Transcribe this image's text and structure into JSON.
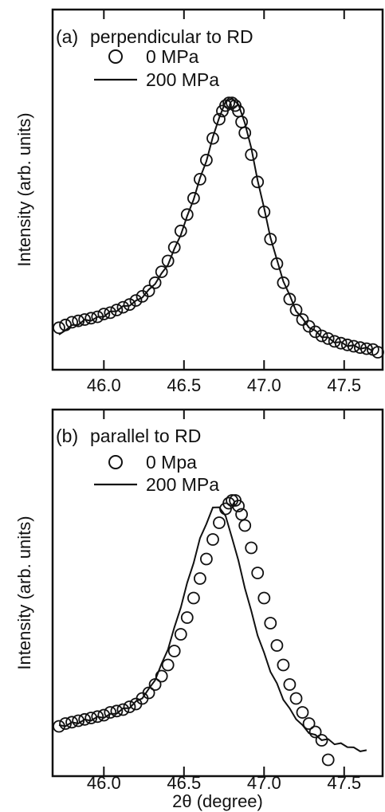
{
  "chart_data": [
    {
      "type": "scatter",
      "panel_label": "(a)",
      "title": "perpendicular to RD",
      "xlabel": "",
      "ylabel": "Intensity (arb. units)",
      "xlim": [
        45.68,
        47.74
      ],
      "ylim": [
        0,
        1
      ],
      "xticks": [
        "46.0",
        "46.5",
        "47.0",
        "47.5"
      ],
      "legend_position": "top-left",
      "series": [
        {
          "name": "0 MPa",
          "marker": "open-circle",
          "x": [
            45.72,
            45.76,
            45.8,
            45.84,
            45.88,
            45.92,
            45.96,
            46.0,
            46.04,
            46.08,
            46.12,
            46.16,
            46.2,
            46.24,
            46.28,
            46.32,
            46.36,
            46.4,
            46.44,
            46.48,
            46.52,
            46.56,
            46.6,
            46.64,
            46.68,
            46.72,
            46.74,
            46.76,
            46.78,
            46.8,
            46.82,
            46.84,
            46.86,
            46.88,
            46.92,
            46.96,
            47.0,
            47.04,
            47.08,
            47.12,
            47.16,
            47.2,
            47.24,
            47.28,
            47.32,
            47.36,
            47.4,
            47.44,
            47.48,
            47.52,
            47.56,
            47.6,
            47.64,
            47.68,
            47.71
          ],
          "y": [
            0.125,
            0.135,
            0.145,
            0.15,
            0.155,
            0.16,
            0.165,
            0.175,
            0.18,
            0.19,
            0.2,
            0.21,
            0.225,
            0.24,
            0.26,
            0.29,
            0.33,
            0.37,
            0.42,
            0.48,
            0.54,
            0.6,
            0.67,
            0.74,
            0.82,
            0.89,
            0.92,
            0.94,
            0.95,
            0.95,
            0.94,
            0.92,
            0.88,
            0.84,
            0.76,
            0.66,
            0.55,
            0.45,
            0.36,
            0.29,
            0.23,
            0.19,
            0.155,
            0.13,
            0.11,
            0.095,
            0.085,
            0.075,
            0.068,
            0.062,
            0.057,
            0.052,
            0.048,
            0.045,
            0.035
          ]
        },
        {
          "name": "200 MPa",
          "marker": "line",
          "x": [
            45.72,
            45.76,
            45.8,
            45.84,
            45.88,
            45.92,
            45.96,
            46.0,
            46.04,
            46.08,
            46.12,
            46.16,
            46.2,
            46.24,
            46.28,
            46.32,
            46.36,
            46.4,
            46.44,
            46.48,
            46.52,
            46.56,
            46.6,
            46.64,
            46.68,
            46.72,
            46.76,
            46.8,
            46.84,
            46.88,
            46.92,
            46.96,
            47.0,
            47.04,
            47.08,
            47.12,
            47.16,
            47.2,
            47.24,
            47.28,
            47.32,
            47.36,
            47.4,
            47.44,
            47.48,
            47.52,
            47.56,
            47.6,
            47.64,
            47.68
          ],
          "y": [
            0.095,
            0.12,
            0.13,
            0.14,
            0.15,
            0.155,
            0.16,
            0.17,
            0.18,
            0.19,
            0.2,
            0.21,
            0.22,
            0.24,
            0.26,
            0.29,
            0.32,
            0.36,
            0.41,
            0.47,
            0.53,
            0.6,
            0.67,
            0.74,
            0.82,
            0.9,
            0.95,
            0.97,
            0.94,
            0.88,
            0.78,
            0.67,
            0.56,
            0.46,
            0.37,
            0.3,
            0.24,
            0.19,
            0.155,
            0.13,
            0.11,
            0.095,
            0.085,
            0.075,
            0.068,
            0.062,
            0.056,
            0.052,
            0.048,
            0.044
          ]
        }
      ]
    },
    {
      "type": "scatter",
      "panel_label": "(b)",
      "title": "parallel to RD",
      "xlabel": "2θ (degree)",
      "ylabel": "Intensity (arb. units)",
      "xlim": [
        45.68,
        47.74
      ],
      "ylim": [
        0,
        1
      ],
      "xticks": [
        "46.0",
        "46.5",
        "47.0",
        "47.5"
      ],
      "legend_position": "top-left",
      "series": [
        {
          "name": "0 Mpa",
          "marker": "open-circle",
          "x": [
            45.72,
            45.76,
            45.8,
            45.84,
            45.88,
            45.92,
            45.96,
            46.0,
            46.04,
            46.08,
            46.12,
            46.16,
            46.2,
            46.24,
            46.28,
            46.32,
            46.36,
            46.4,
            46.44,
            46.48,
            46.52,
            46.56,
            46.6,
            46.64,
            46.68,
            46.72,
            46.76,
            46.78,
            46.8,
            46.82,
            46.84,
            46.86,
            46.88,
            46.92,
            46.96,
            47.0,
            47.04,
            47.08,
            47.12,
            47.16,
            47.2,
            47.24,
            47.28,
            47.32,
            47.36,
            47.4
          ],
          "y": [
            0.15,
            0.16,
            0.165,
            0.17,
            0.175,
            0.18,
            0.185,
            0.19,
            0.2,
            0.205,
            0.21,
            0.22,
            0.23,
            0.25,
            0.27,
            0.3,
            0.33,
            0.37,
            0.42,
            0.48,
            0.54,
            0.61,
            0.68,
            0.75,
            0.82,
            0.88,
            0.93,
            0.95,
            0.96,
            0.96,
            0.94,
            0.91,
            0.87,
            0.79,
            0.7,
            0.61,
            0.52,
            0.44,
            0.37,
            0.3,
            0.25,
            0.2,
            0.16,
            0.13,
            0.1,
            0.03
          ]
        },
        {
          "name": "200 MPa",
          "marker": "line",
          "x": [
            45.72,
            45.76,
            45.8,
            45.84,
            45.88,
            45.92,
            45.96,
            46.0,
            46.04,
            46.08,
            46.12,
            46.16,
            46.2,
            46.24,
            46.28,
            46.32,
            46.36,
            46.4,
            46.44,
            46.48,
            46.52,
            46.56,
            46.6,
            46.64,
            46.68,
            46.72,
            46.76,
            46.8,
            46.84,
            46.88,
            46.92,
            46.96,
            47.0,
            47.04,
            47.08,
            47.12,
            47.16,
            47.2,
            47.24,
            47.28,
            47.32,
            47.36,
            47.4,
            47.44,
            47.48,
            47.52,
            47.56,
            47.6,
            47.64
          ],
          "y": [
            0.15,
            0.155,
            0.16,
            0.165,
            0.17,
            0.175,
            0.18,
            0.185,
            0.19,
            0.2,
            0.21,
            0.22,
            0.235,
            0.255,
            0.28,
            0.32,
            0.37,
            0.43,
            0.5,
            0.58,
            0.66,
            0.74,
            0.82,
            0.88,
            0.93,
            0.94,
            0.9,
            0.83,
            0.74,
            0.65,
            0.56,
            0.48,
            0.41,
            0.35,
            0.3,
            0.25,
            0.21,
            0.18,
            0.15,
            0.13,
            0.115,
            0.105,
            0.1,
            0.09,
            0.085,
            0.08,
            0.07,
            0.065,
            0.06
          ]
        }
      ]
    }
  ]
}
